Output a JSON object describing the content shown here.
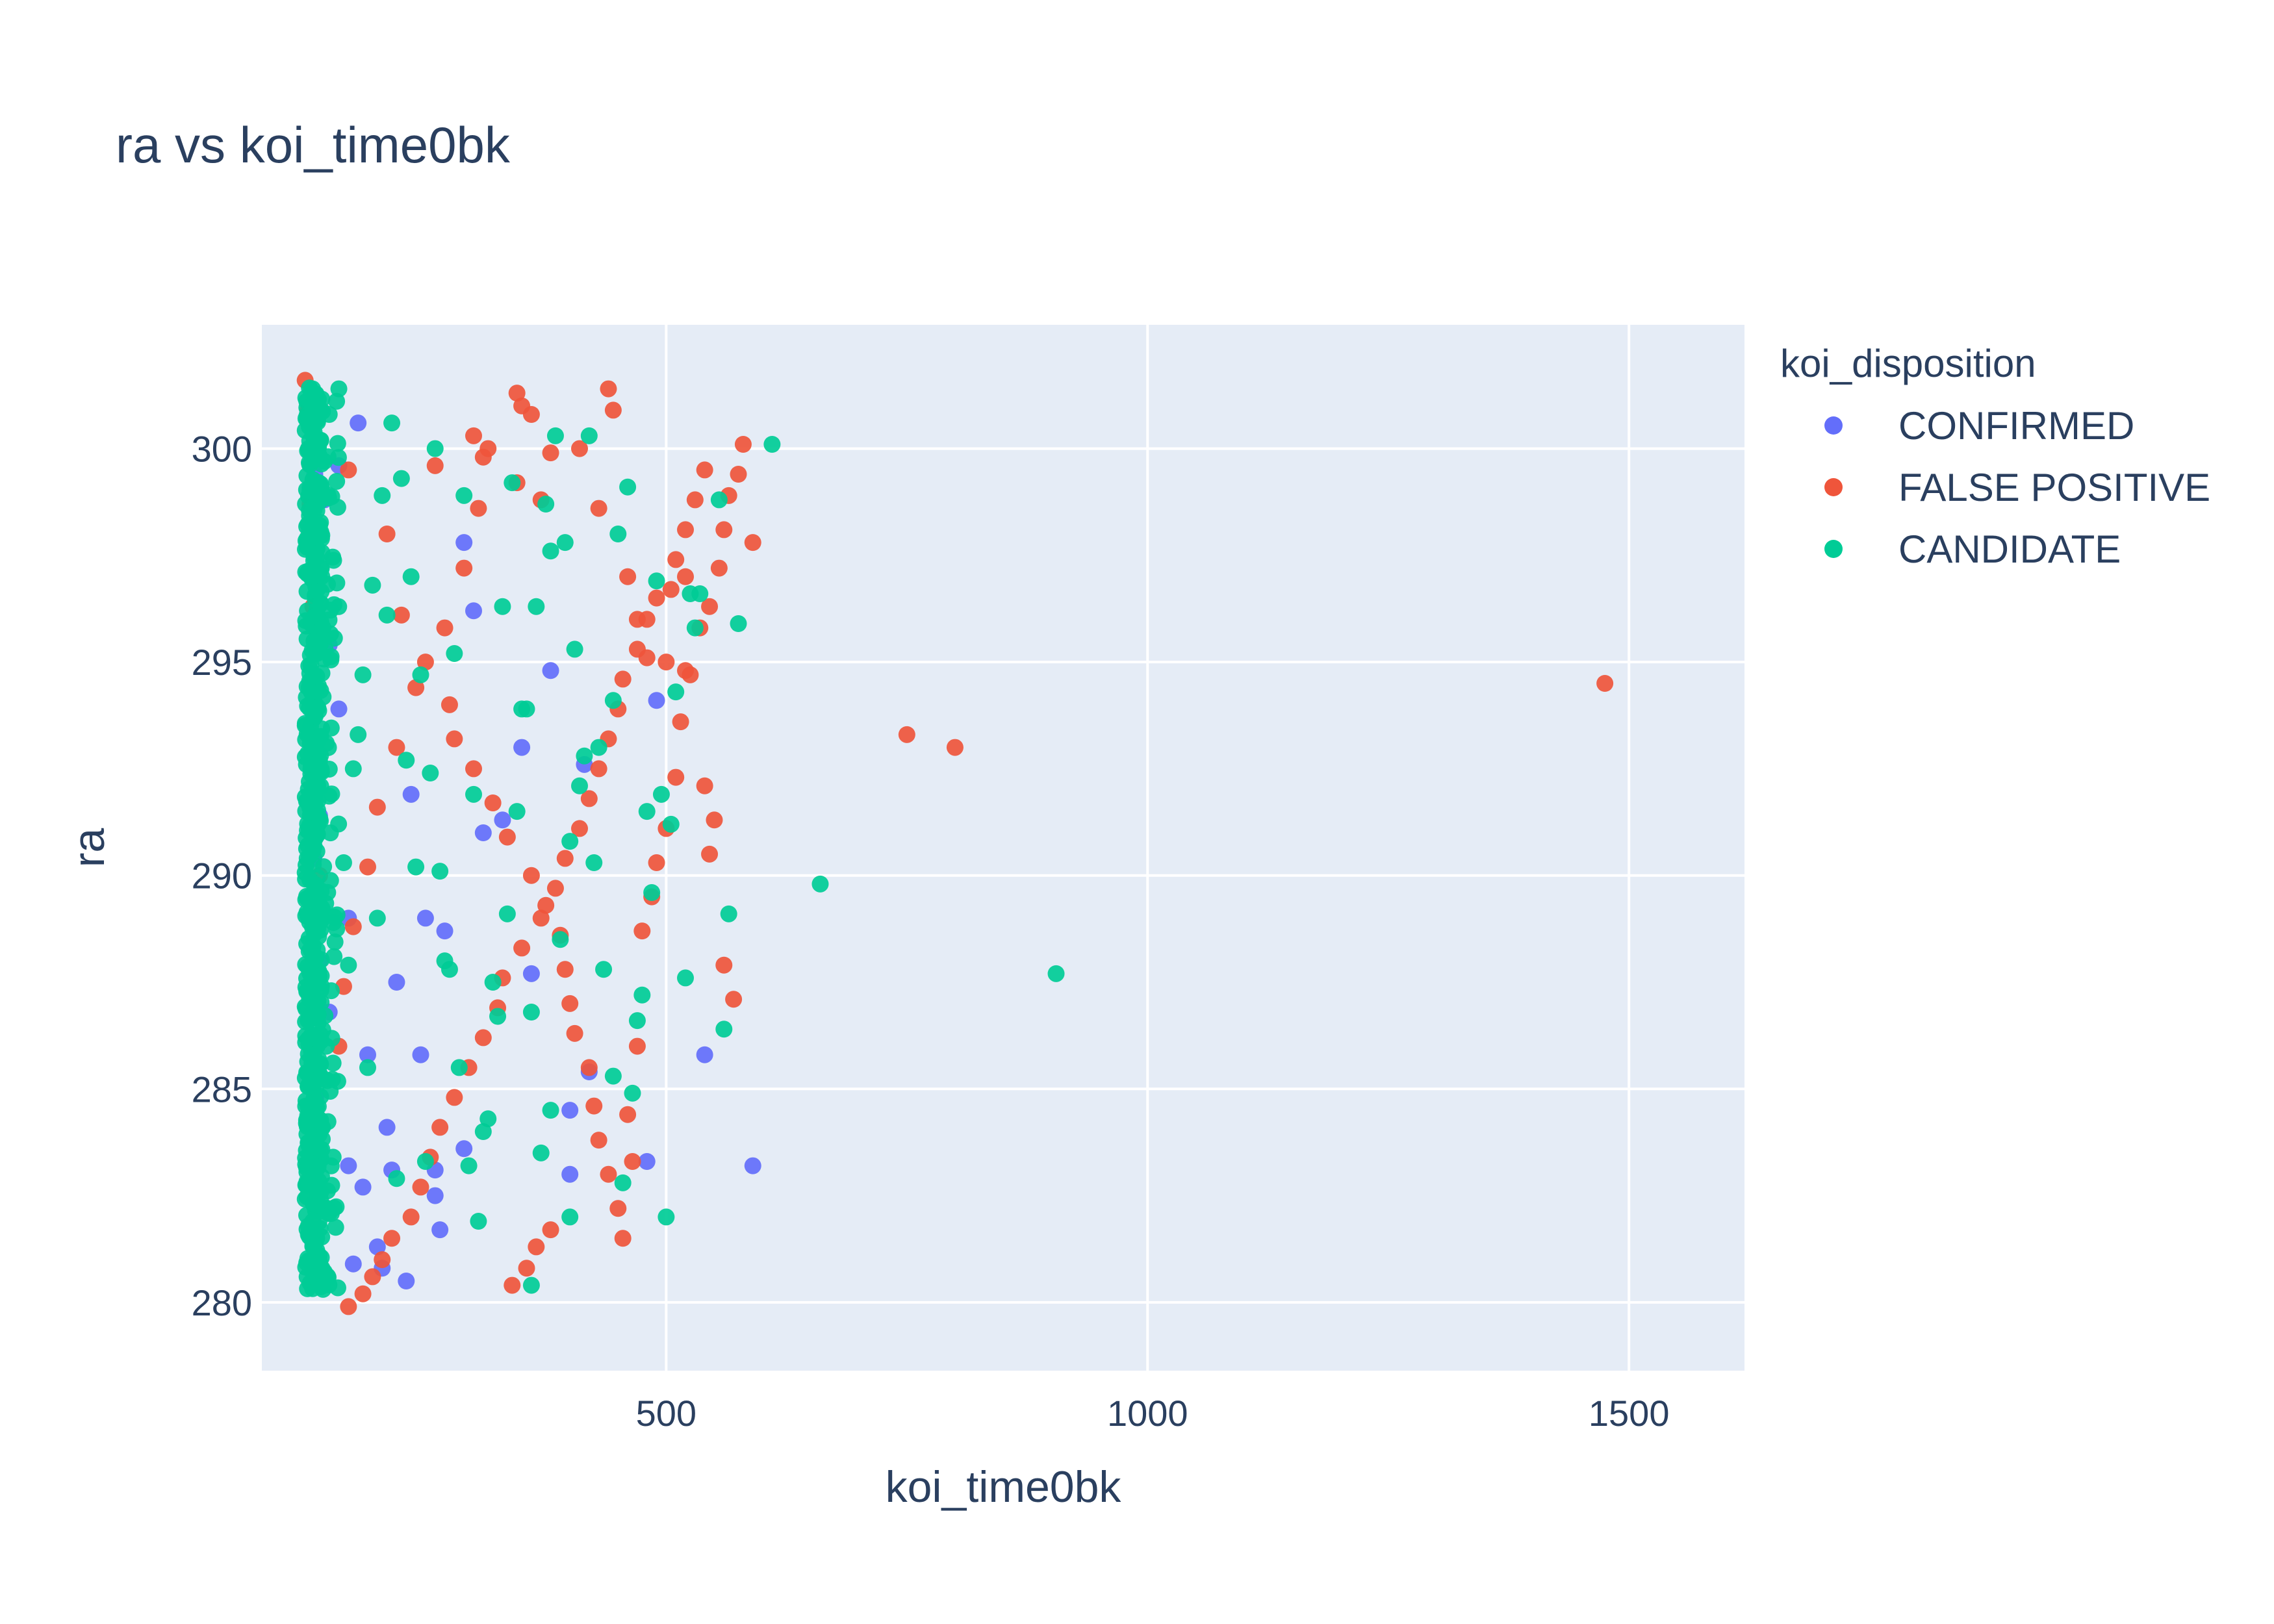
{
  "chart_data": {
    "type": "scatter",
    "title": "ra vs koi_time0bk",
    "xlabel": "koi_time0bk",
    "ylabel": "ra",
    "xlim": [
      80,
      1620
    ],
    "ylim": [
      278.4,
      302.9
    ],
    "x_ticks": [
      500,
      1000,
      1500
    ],
    "y_ticks": [
      280,
      285,
      290,
      295,
      300
    ],
    "grid": true,
    "plot_background": "#e5ecf6",
    "legend": {
      "title": "koi_disposition",
      "placement": "top-right-outside"
    },
    "series": [
      {
        "name": "CONFIRMED",
        "color": "#636efa",
        "x": [
          135,
          133,
          135,
          137,
          140,
          134,
          138,
          150,
          170,
          200,
          230,
          260,
          290,
          136,
          139,
          133,
          145,
          160,
          180,
          220,
          250,
          300,
          350,
          400,
          490,
          540,
          590,
          480,
          420,
          400,
          260,
          290,
          210,
          190,
          175,
          270,
          330,
          170,
          140,
          135,
          150,
          160,
          205,
          235,
          310,
          380,
          415,
          360,
          245,
          185,
          215,
          265
        ],
        "y": [
          299.4,
          297.8,
          296.9,
          292.3,
          291.4,
          290.4,
          287.0,
          286.8,
          283.2,
          281.3,
          280.5,
          282.5,
          297.8,
          284.8,
          283.3,
          281.4,
          298.8,
          299.6,
          300.6,
          287.5,
          289.0,
          296.2,
          293.0,
          284.5,
          294.1,
          285.8,
          283.2,
          283.3,
          285.4,
          283.0,
          283.1,
          283.6,
          284.1,
          285.8,
          280.9,
          288.7,
          291.3,
          289.0,
          288.0,
          295.8,
          295.4,
          293.9,
          280.8,
          291.9,
          291.0,
          294.8,
          292.6,
          287.7,
          285.8,
          282.7,
          283.1,
          281.7
        ]
      },
      {
        "name": "FALSE POSITIVE",
        "color": "#ef553b",
        "x": [
          1475,
          750,
          800,
          590,
          545,
          520,
          490,
          500,
          300,
          350,
          440,
          445,
          260,
          310,
          345,
          370,
          410,
          430,
          460,
          470,
          480,
          520,
          540,
          550,
          560,
          570,
          170,
          210,
          225,
          250,
          275,
          280,
          300,
          320,
          335,
          360,
          375,
          390,
          395,
          400,
          405,
          420,
          425,
          430,
          440,
          450,
          455,
          460,
          465,
          470,
          475,
          485,
          490,
          500,
          510,
          515,
          525,
          535,
          545,
          555,
          560,
          565,
          575,
          580,
          340,
          355,
          365,
          380,
          170,
          185,
          195,
          205,
          215,
          235,
          245,
          255,
          265,
          280,
          295,
          310,
          325,
          330,
          350,
          370,
          385,
          395,
          410,
          420,
          430,
          440,
          450,
          455,
          470,
          480,
          505,
          510,
          520,
          530,
          540,
          160,
          165,
          175,
          190,
          200,
          220,
          240,
          270,
          290,
          305,
          315,
          345,
          360,
          380,
          125,
          128,
          130,
          133,
          136,
          140
        ],
        "y": [
          294.5,
          293.3,
          293.0,
          297.8,
          290.5,
          297.0,
          296.5,
          295.0,
          300.3,
          301.0,
          301.4,
          300.9,
          299.6,
          299.8,
          299.2,
          298.8,
          300.0,
          298.6,
          297.0,
          296.0,
          295.1,
          294.8,
          292.1,
          291.3,
          287.9,
          287.1,
          299.5,
          298.0,
          296.1,
          295.0,
          294.0,
          293.2,
          292.5,
          291.7,
          290.9,
          290.0,
          289.3,
          288.6,
          287.8,
          287.0,
          286.3,
          285.5,
          284.6,
          283.8,
          283.0,
          282.2,
          281.5,
          284.4,
          283.3,
          286.0,
          288.7,
          289.5,
          290.3,
          291.1,
          292.3,
          293.6,
          294.7,
          295.8,
          296.3,
          297.2,
          298.1,
          298.9,
          299.4,
          300.1,
          280.4,
          280.8,
          281.3,
          281.7,
          279.9,
          280.2,
          280.6,
          281.0,
          281.5,
          282.0,
          282.7,
          283.4,
          284.1,
          284.8,
          285.5,
          286.2,
          286.9,
          287.6,
          288.3,
          289.0,
          289.7,
          290.4,
          291.1,
          291.8,
          292.5,
          293.2,
          293.9,
          294.6,
          295.3,
          296.0,
          296.7,
          297.4,
          298.1,
          298.8,
          299.5,
          286.0,
          287.4,
          288.8,
          290.2,
          291.6,
          293.0,
          294.4,
          295.8,
          297.2,
          298.6,
          300.0,
          301.3,
          300.8,
          299.9,
          301.6,
          300.9,
          298.7,
          296.3,
          293.1,
          290.0
        ]
      },
      {
        "name": "CANDIDATE",
        "color": "#00cc96",
        "x": [
          905,
          660,
          610,
          575,
          565,
          560,
          530,
          525,
          520,
          505,
          500,
          490,
          480,
          470,
          460,
          450,
          445,
          430,
          420,
          410,
          400,
          390,
          380,
          370,
          360,
          350,
          340,
          330,
          320,
          310,
          300,
          290,
          280,
          270,
          260,
          250,
          240,
          230,
          220,
          210,
          200,
          190,
          180,
          170,
          160,
          150,
          145,
          140,
          138,
          136,
          135,
          134,
          133,
          132,
          131,
          137,
          139,
          141,
          143,
          147,
          155,
          165,
          175,
          185,
          195,
          205,
          215,
          225,
          235,
          245,
          255,
          265,
          275,
          285,
          295,
          305,
          315,
          325,
          335,
          345,
          355,
          365,
          375,
          385,
          395,
          405,
          415,
          425,
          435,
          445,
          455,
          465,
          475,
          485,
          495,
          510,
          535,
          555,
          360,
          380,
          400
        ],
        "y": [
          287.7,
          289.8,
          300.1,
          295.9,
          289.1,
          286.4,
          295.8,
          296.6,
          287.6,
          291.2,
          282.0,
          296.9,
          291.5,
          286.6,
          299.1,
          298.0,
          294.1,
          293.0,
          300.3,
          292.1,
          290.8,
          288.5,
          297.6,
          283.5,
          286.8,
          293.9,
          299.2,
          296.3,
          287.5,
          284.0,
          291.9,
          298.9,
          295.2,
          288.0,
          300.0,
          283.3,
          290.2,
          292.7,
          282.9,
          296.1,
          289.0,
          285.5,
          293.3,
          287.9,
          301.4,
          300.8,
          299.7,
          298.2,
          296.1,
          294.0,
          291.9,
          289.8,
          287.7,
          285.6,
          283.5,
          281.5,
          280.6,
          282.4,
          284.1,
          286.0,
          288.1,
          290.3,
          292.5,
          294.7,
          296.8,
          298.9,
          300.6,
          299.3,
          297.0,
          294.7,
          292.4,
          290.1,
          287.8,
          285.5,
          283.2,
          281.9,
          284.3,
          286.7,
          289.1,
          291.5,
          293.9,
          296.3,
          298.7,
          300.3,
          297.8,
          295.3,
          292.8,
          290.3,
          287.8,
          285.3,
          282.8,
          284.9,
          287.2,
          289.6,
          291.9,
          294.3,
          296.6,
          298.8,
          280.4,
          284.5,
          282.0
        ]
      }
    ],
    "dense_band": {
      "series": "CANDIDATE",
      "x_range": [
        125,
        160
      ],
      "y_range": [
        280.3,
        301.6
      ]
    }
  }
}
